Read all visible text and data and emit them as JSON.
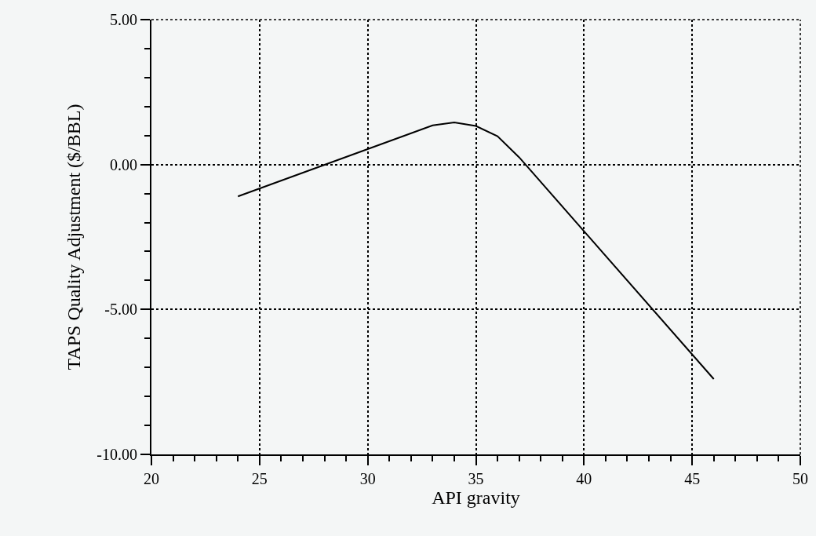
{
  "chart_data": {
    "type": "line",
    "xlabel": "API gravity",
    "ylabel": "TAPS Quality Adjustment ($/BBL)",
    "series": [
      {
        "color": "#000000",
        "x": [
          24,
          33,
          34,
          35,
          36,
          37,
          40,
          46
        ],
        "values": [
          -1.1,
          1.35,
          1.45,
          1.33,
          0.98,
          0.25,
          -2.3,
          -7.4
        ]
      }
    ],
    "xlim": [
      20,
      50
    ],
    "xticks": [
      20,
      25,
      30,
      35,
      40,
      45,
      50
    ],
    "ylim": [
      -10,
      5
    ],
    "yticks": [
      {
        "value": -10,
        "label": "-10.00"
      },
      {
        "value": -5,
        "label": "-5.00"
      },
      {
        "value": 0,
        "label": "0.00"
      },
      {
        "value": 5,
        "label": "5.00"
      }
    ],
    "grid": true,
    "marker": "none",
    "line_style": "solid"
  }
}
